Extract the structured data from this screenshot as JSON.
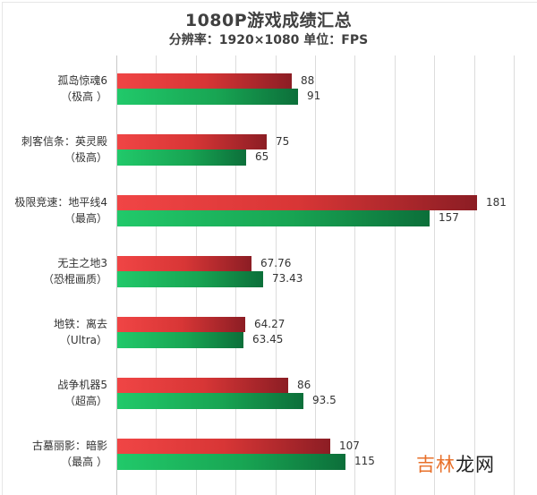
{
  "header": {
    "title": "1080P游戏成绩汇总",
    "subtitle": "分辨率：1920×1080 单位：FPS"
  },
  "colors": {
    "series_red": "#d83636",
    "series_green": "#18a553",
    "gridline": "#dcdcdc",
    "watermark_orange": "#e8702a"
  },
  "watermark": {
    "part1": "吉林",
    "part2": "龙网"
  },
  "groups": [
    {
      "name": "孤岛惊魂6",
      "setting": "（极高 ）",
      "red_label": "88",
      "green_label": "91"
    },
    {
      "name": "刺客信条：英灵殿",
      "setting": "（极高）",
      "red_label": "75",
      "green_label": "65"
    },
    {
      "name": "极限竞速：地平线4",
      "setting": "（最高）",
      "red_label": "181",
      "green_label": "157"
    },
    {
      "name": "无主之地3",
      "setting": "（恐棍画质）",
      "red_label": "67.76",
      "green_label": "73.43"
    },
    {
      "name": "地铁：离去",
      "setting": "（Ultra）",
      "red_label": "64.27",
      "green_label": "63.45"
    },
    {
      "name": "战争机器5",
      "setting": "（超高）",
      "red_label": "86",
      "green_label": "93.5"
    },
    {
      "name": "古墓丽影：暗影",
      "setting": "（最高 ）",
      "red_label": "107",
      "green_label": "115"
    }
  ],
  "chart_data": {
    "type": "bar",
    "orientation": "horizontal",
    "title": "1080P游戏成绩汇总",
    "subtitle": "分辨率：1920×1080 单位：FPS",
    "xlabel": "",
    "ylabel": "",
    "unit": "FPS",
    "categories": [
      "孤岛惊魂6（极高）",
      "刺客信条：英灵殿（极高）",
      "极限竞速：地平线4（最高）",
      "无主之地3（恐棍画质）",
      "地铁：离去（Ultra）",
      "战争机器5（超高）",
      "古墓丽影：暗影（最高）"
    ],
    "series": [
      {
        "name": "red",
        "color": "#d83636",
        "values": [
          88,
          75,
          181,
          67.76,
          64.27,
          86,
          107
        ]
      },
      {
        "name": "green",
        "color": "#18a553",
        "values": [
          91,
          65,
          157,
          73.43,
          63.45,
          93.5,
          115
        ]
      }
    ],
    "xlim": [
      0,
      200
    ],
    "grid_step": 20,
    "grid": true,
    "legend": "none",
    "data_labels": true
  }
}
